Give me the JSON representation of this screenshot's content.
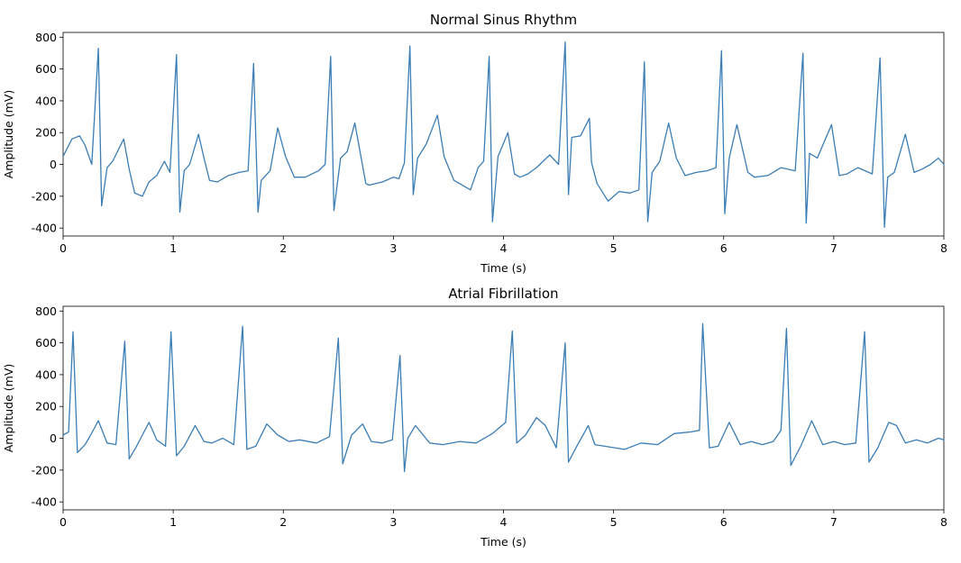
{
  "chart_data": [
    {
      "type": "line",
      "title": "Normal Sinus Rhythm",
      "xlabel": "Time (s)",
      "ylabel": "Amplitude (mV)",
      "xlim": [
        0,
        8
      ],
      "ylim": [
        -450,
        830
      ],
      "xticks": [
        "0",
        "1",
        "2",
        "3",
        "4",
        "5",
        "6",
        "7",
        "8"
      ],
      "yticks": [
        "-400",
        "-200",
        "0",
        "200",
        "400",
        "600",
        "800"
      ],
      "grid": false,
      "line_color": "#3b7db5",
      "series": [
        {
          "x": [
            0,
            0.08,
            0.15,
            0.2,
            0.26,
            0.32,
            0.35,
            0.4,
            0.45,
            0.55,
            0.6,
            0.65,
            0.72,
            0.78,
            0.85,
            0.92,
            0.97,
            1.03,
            1.06,
            1.1,
            1.15,
            1.23,
            1.28,
            1.33,
            1.4,
            1.5,
            1.6,
            1.68,
            1.73,
            1.77,
            1.8,
            1.88,
            1.95,
            2.02,
            2.1,
            2.2,
            2.32,
            2.38,
            2.43,
            2.46,
            2.52,
            2.58,
            2.65,
            2.75,
            2.78,
            2.9,
            3.0,
            3.05,
            3.1,
            3.15,
            3.18,
            3.22,
            3.3,
            3.4,
            3.46,
            3.55,
            3.7,
            3.77,
            3.82,
            3.87,
            3.9,
            3.95,
            4.04,
            4.1,
            4.15,
            4.22,
            4.3,
            4.42,
            4.5,
            4.56,
            4.59,
            4.62,
            4.7,
            4.78,
            4.8,
            4.85,
            4.95,
            5.05,
            5.15,
            5.23,
            5.28,
            5.31,
            5.35,
            5.42,
            5.5,
            5.57,
            5.65,
            5.75,
            5.85,
            5.93,
            5.98,
            6.01,
            6.05,
            6.12,
            6.22,
            6.28,
            6.4,
            6.52,
            6.65,
            6.72,
            6.75,
            6.78,
            6.85,
            6.98,
            7.05,
            7.12,
            7.22,
            7.35,
            7.42,
            7.46,
            7.49,
            7.55,
            7.65,
            7.73,
            7.8,
            7.88,
            7.95,
            8.0
          ],
          "values": [
            50,
            160,
            180,
            120,
            0,
            730,
            -260,
            -20,
            20,
            160,
            -30,
            -180,
            -200,
            -110,
            -70,
            20,
            -50,
            690,
            -300,
            -40,
            0,
            190,
            40,
            -100,
            -110,
            -70,
            -50,
            -40,
            635,
            -300,
            -100,
            -40,
            230,
            50,
            -80,
            -80,
            -40,
            0,
            680,
            -290,
            40,
            80,
            260,
            -120,
            -130,
            -110,
            -80,
            -90,
            10,
            745,
            -190,
            40,
            130,
            310,
            50,
            -100,
            -160,
            -20,
            20,
            680,
            -360,
            50,
            200,
            -60,
            -80,
            -60,
            -20,
            60,
            0,
            770,
            -190,
            170,
            180,
            290,
            10,
            -120,
            -230,
            -170,
            -180,
            -160,
            645,
            -360,
            -50,
            20,
            260,
            40,
            -70,
            -50,
            -40,
            -20,
            715,
            -310,
            40,
            250,
            -50,
            -80,
            -70,
            -20,
            -40,
            700,
            -370,
            70,
            40,
            250,
            -70,
            -60,
            -20,
            -60,
            670,
            -395,
            -80,
            -50,
            190,
            -50,
            -30,
            0,
            40,
            0
          ]
        }
      ]
    },
    {
      "type": "line",
      "title": "Atrial Fibrillation",
      "xlabel": "Time (s)",
      "ylabel": "Amplitude (mV)",
      "xlim": [
        0,
        8
      ],
      "ylim": [
        -450,
        830
      ],
      "xticks": [
        "0",
        "1",
        "2",
        "3",
        "4",
        "5",
        "6",
        "7",
        "8"
      ],
      "yticks": [
        "-400",
        "-200",
        "0",
        "200",
        "400",
        "600",
        "800"
      ],
      "grid": false,
      "line_color": "#3b7db5",
      "series": [
        {
          "x": [
            0,
            0.05,
            0.09,
            0.13,
            0.2,
            0.25,
            0.32,
            0.4,
            0.48,
            0.56,
            0.6,
            0.66,
            0.72,
            0.78,
            0.85,
            0.93,
            0.98,
            1.03,
            1.1,
            1.2,
            1.28,
            1.35,
            1.45,
            1.55,
            1.63,
            1.67,
            1.75,
            1.85,
            1.95,
            2.05,
            2.15,
            2.3,
            2.42,
            2.5,
            2.54,
            2.62,
            2.72,
            2.8,
            2.9,
            2.99,
            3.06,
            3.1,
            3.13,
            3.2,
            3.33,
            3.45,
            3.6,
            3.75,
            3.9,
            4.02,
            4.08,
            4.12,
            4.2,
            4.3,
            4.38,
            4.48,
            4.56,
            4.59,
            4.65,
            4.77,
            4.83,
            4.92,
            5.1,
            5.25,
            5.4,
            5.55,
            5.7,
            5.78,
            5.81,
            5.87,
            5.95,
            6.05,
            6.15,
            6.25,
            6.35,
            6.45,
            6.52,
            6.57,
            6.61,
            6.7,
            6.8,
            6.9,
            7.0,
            7.1,
            7.2,
            7.28,
            7.32,
            7.4,
            7.5,
            7.57,
            7.65,
            7.75,
            7.85,
            7.95,
            8.0
          ],
          "values": [
            20,
            40,
            670,
            -90,
            -40,
            20,
            110,
            -30,
            -40,
            610,
            -130,
            -60,
            20,
            100,
            -10,
            -50,
            670,
            -110,
            -50,
            80,
            -20,
            -30,
            0,
            -40,
            705,
            -70,
            -50,
            90,
            20,
            -20,
            -10,
            -30,
            10,
            630,
            -160,
            20,
            90,
            -20,
            -30,
            -10,
            520,
            -210,
            0,
            80,
            -30,
            -40,
            -20,
            -30,
            30,
            100,
            675,
            -30,
            20,
            130,
            80,
            -60,
            600,
            -150,
            -70,
            80,
            -40,
            -50,
            -70,
            -30,
            -40,
            30,
            40,
            50,
            720,
            -60,
            -50,
            100,
            -40,
            -20,
            -40,
            -20,
            50,
            690,
            -170,
            -50,
            110,
            -40,
            -20,
            -40,
            -30,
            670,
            -150,
            -60,
            100,
            80,
            -30,
            -10,
            -30,
            0,
            -10
          ]
        }
      ]
    }
  ]
}
